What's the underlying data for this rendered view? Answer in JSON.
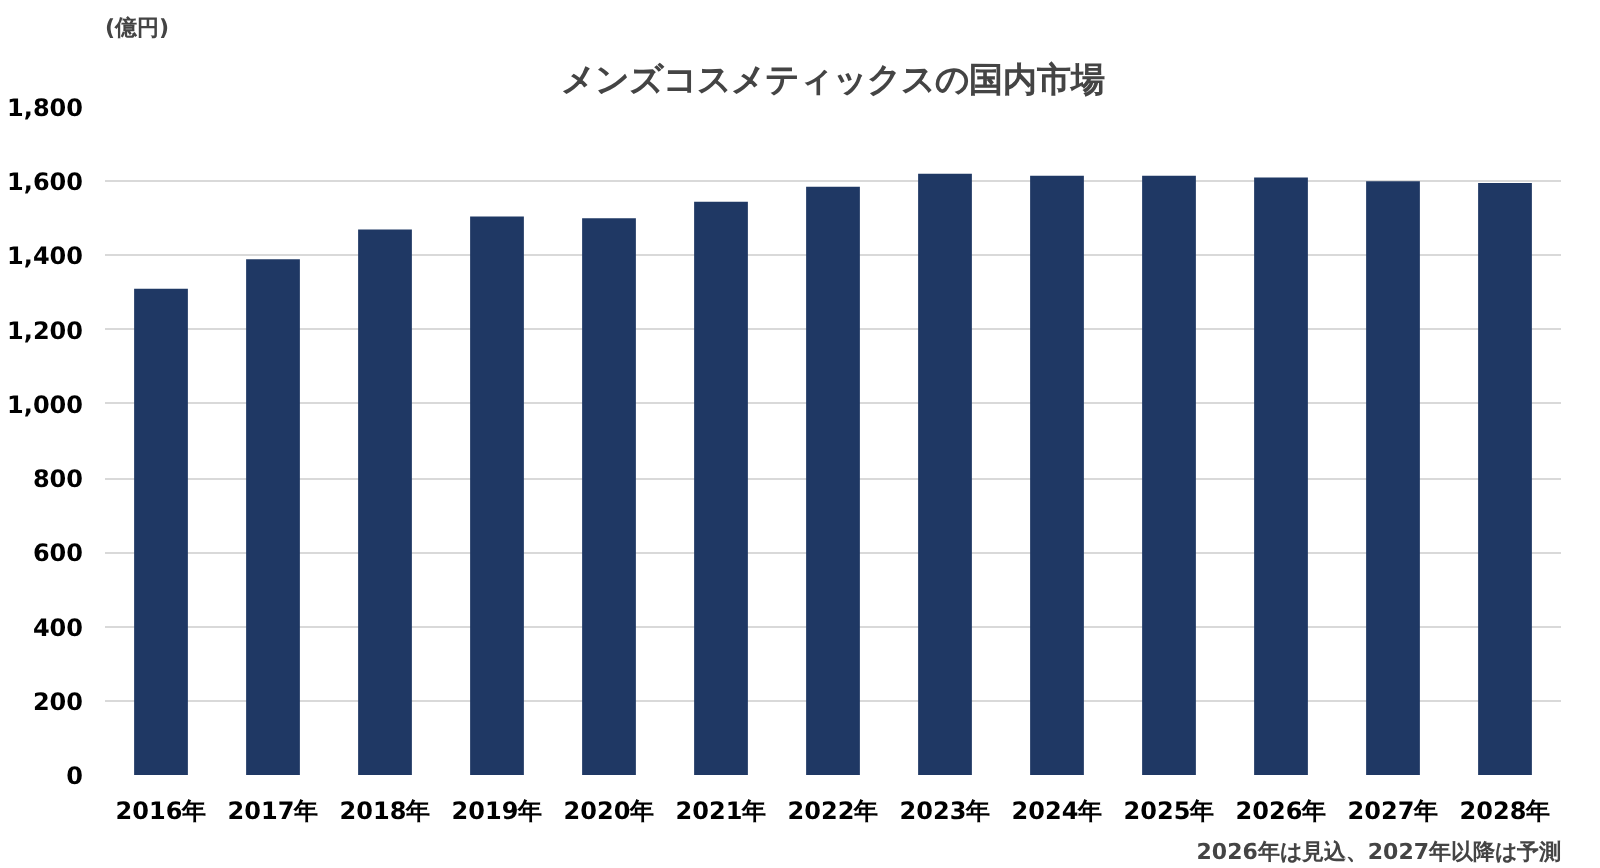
{
  "chart_data": {
    "type": "bar",
    "title": "メンズコスメティックスの国内市場",
    "ylabel": "(億円)",
    "categories": [
      "2016年",
      "2017年",
      "2018年",
      "2019年",
      "2020年",
      "2021年",
      "2022年",
      "2023年",
      "2024年",
      "2025年",
      "2026年",
      "2027年",
      "2028年"
    ],
    "values": [
      1310,
      1390,
      1470,
      1505,
      1500,
      1545,
      1585,
      1620,
      1615,
      1615,
      1610,
      1600,
      1595
    ],
    "color": "#1f3864",
    "ylim": [
      0,
      1800
    ],
    "yticks": [
      {
        "value": 0,
        "label": "0"
      },
      {
        "value": 200,
        "label": "200"
      },
      {
        "value": 400,
        "label": "400"
      },
      {
        "value": 600,
        "label": "600"
      },
      {
        "value": 800,
        "label": "800"
      },
      {
        "value": 1000,
        "label": "1,000"
      },
      {
        "value": 1200,
        "label": "1,200"
      },
      {
        "value": 1400,
        "label": "1,400"
      },
      {
        "value": 1600,
        "label": "1,600"
      },
      {
        "value": 1800,
        "label": "1,800"
      }
    ],
    "grid": "y",
    "annotations": [
      "2026年は見込、2027年以降は予測"
    ]
  }
}
